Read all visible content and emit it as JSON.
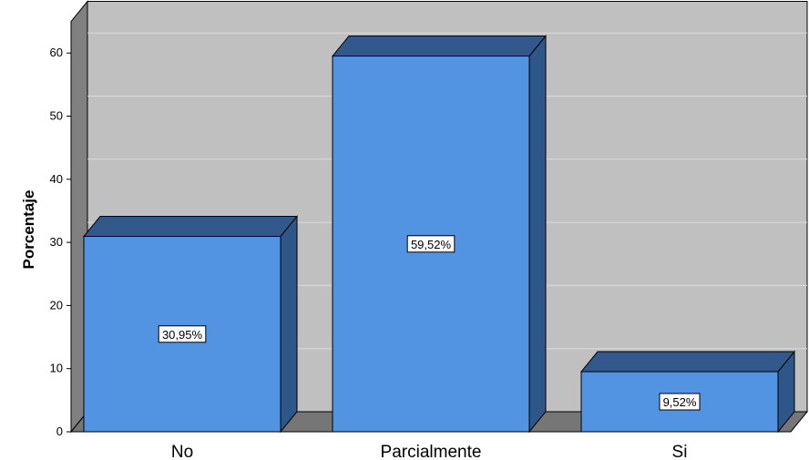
{
  "chart_data": {
    "type": "bar",
    "categories": [
      "No",
      "Parcialmente",
      "Si"
    ],
    "values": [
      30.95,
      59.52,
      9.52
    ],
    "data_labels": [
      "30,95%",
      "59,52%",
      "9,52%"
    ],
    "ylabel": "Porcentaje",
    "xlabel": "",
    "ylim": [
      0,
      65
    ],
    "yticks": [
      "0",
      "10",
      "20",
      "30",
      "40",
      "50",
      "60"
    ],
    "grid": true,
    "style": "3d",
    "colors": {
      "bar_front": "#5294e2",
      "bar_side": "#2f5689",
      "bar_top": "#33598c",
      "back_wall": "#c0c0c0",
      "left_wall": "#808080",
      "floor": "#767676",
      "gridline": "#dcdcdc"
    }
  }
}
